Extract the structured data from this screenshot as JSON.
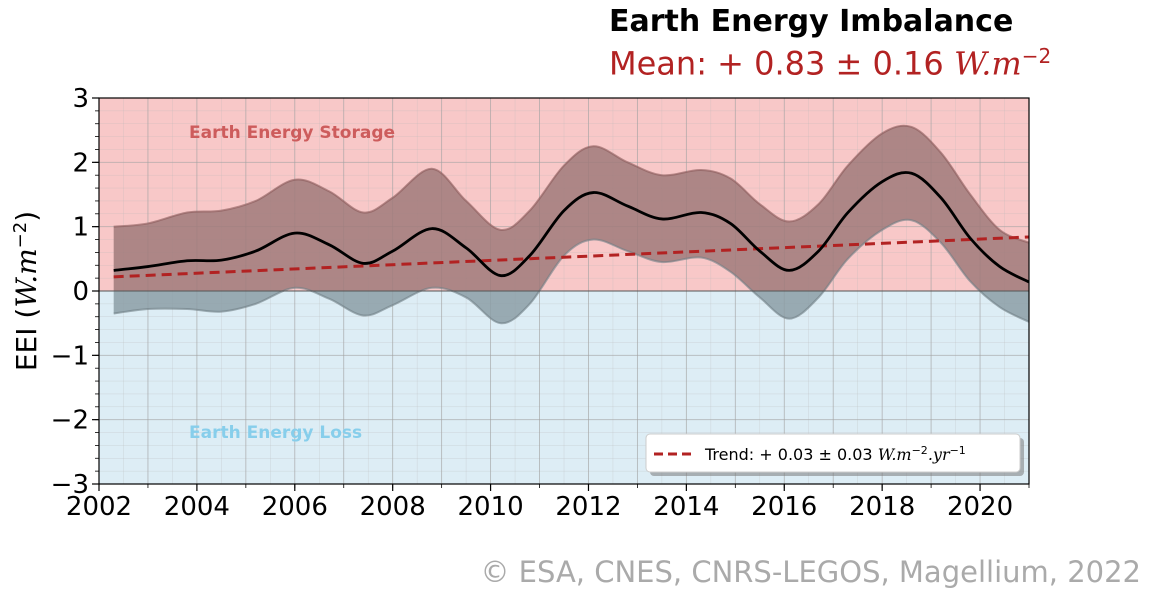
{
  "title": "Earth Energy Imbalance",
  "subtitle_prefix": "Mean: + 0.83 ± 0.16",
  "subtitle_unit": "W.m",
  "subtitle_exp": "−2",
  "credit": "© ESA, CNES, CNRS-LEGOS, Magellium, 2022",
  "colors": {
    "storage_bg": "#f8c8c8",
    "loss_bg": "#ddedf5",
    "band_pos": "#a07a7a",
    "band_neg": "#8c9ea6",
    "trend": "#b22222",
    "mean_line": "#000000",
    "storage_label": "#cd5c5c",
    "loss_label": "#87ceeb"
  },
  "chart_data": {
    "type": "line",
    "title": "Earth Energy Imbalance",
    "subtitle": "Mean: + 0.83 ± 0.16 W.m^-2",
    "ylabel": "EEI (W.m^-2)",
    "xlabel": "",
    "xlim": [
      2002,
      2021
    ],
    "ylim": [
      -3,
      3
    ],
    "x_ticks": [
      2002,
      2004,
      2006,
      2008,
      2010,
      2012,
      2014,
      2016,
      2018,
      2020
    ],
    "y_ticks": [
      -3,
      -2,
      -1,
      0,
      1,
      2,
      3
    ],
    "y_tick_labels": [
      "−3",
      "−2",
      "−1",
      "0",
      "1",
      "2",
      "3"
    ],
    "grid": true,
    "regions": [
      {
        "label": "Earth Energy Storage",
        "y_range": [
          0,
          3
        ]
      },
      {
        "label": "Earth Energy Loss",
        "y_range": [
          -3,
          0
        ]
      }
    ],
    "series": [
      {
        "kind": "mean",
        "x": [
          2002.3,
          2003.0,
          2003.8,
          2004.5,
          2005.2,
          2006.0,
          2006.7,
          2007.4,
          2008.0,
          2008.8,
          2009.5,
          2010.2,
          2010.8,
          2011.5,
          2012.1,
          2012.8,
          2013.5,
          2014.3,
          2014.9,
          2015.5,
          2016.1,
          2016.7,
          2017.3,
          2018.0,
          2018.6,
          2019.2,
          2019.8,
          2020.4,
          2021.0
        ],
        "y": [
          0.32,
          0.38,
          0.47,
          0.48,
          0.62,
          0.9,
          0.72,
          0.43,
          0.62,
          0.97,
          0.67,
          0.24,
          0.55,
          1.25,
          1.53,
          1.32,
          1.12,
          1.22,
          1.05,
          0.62,
          0.32,
          0.62,
          1.22,
          1.7,
          1.83,
          1.45,
          0.82,
          0.38,
          0.14
        ]
      },
      {
        "kind": "upper",
        "x": [
          2002.3,
          2003.0,
          2003.8,
          2004.5,
          2005.2,
          2006.0,
          2006.7,
          2007.4,
          2008.0,
          2008.8,
          2009.5,
          2010.2,
          2010.8,
          2011.5,
          2012.1,
          2012.8,
          2013.5,
          2014.3,
          2014.9,
          2015.5,
          2016.1,
          2016.7,
          2017.3,
          2018.0,
          2018.6,
          2019.2,
          2019.8,
          2020.4,
          2021.0
        ],
        "y": [
          1.0,
          1.05,
          1.22,
          1.25,
          1.4,
          1.73,
          1.55,
          1.22,
          1.45,
          1.9,
          1.4,
          0.95,
          1.25,
          1.95,
          2.25,
          2.0,
          1.8,
          1.88,
          1.75,
          1.35,
          1.08,
          1.35,
          1.95,
          2.45,
          2.55,
          2.15,
          1.5,
          0.95,
          0.75
        ]
      },
      {
        "kind": "lower",
        "x": [
          2002.3,
          2003.0,
          2003.8,
          2004.5,
          2005.2,
          2006.0,
          2006.7,
          2007.4,
          2008.0,
          2008.8,
          2009.5,
          2010.2,
          2010.8,
          2011.5,
          2012.1,
          2012.8,
          2013.5,
          2014.3,
          2014.9,
          2015.5,
          2016.1,
          2016.7,
          2017.3,
          2018.0,
          2018.6,
          2019.2,
          2019.8,
          2020.4,
          2021.0
        ],
        "y": [
          -0.35,
          -0.28,
          -0.28,
          -0.32,
          -0.2,
          0.05,
          -0.12,
          -0.38,
          -0.22,
          0.05,
          -0.1,
          -0.5,
          -0.2,
          0.55,
          0.8,
          0.62,
          0.45,
          0.52,
          0.3,
          -0.1,
          -0.43,
          -0.1,
          0.5,
          0.95,
          1.1,
          0.75,
          0.15,
          -0.25,
          -0.48
        ]
      },
      {
        "kind": "trend",
        "name": "Trend: + 0.03 ± 0.03 W.m^-2.yr^-1",
        "x": [
          2002.3,
          2021.0
        ],
        "y": [
          0.22,
          0.84
        ]
      }
    ],
    "legend": {
      "placement": "lower-right",
      "label_prefix": "Trend: + 0.03 ± 0.03",
      "label_unit": "W.m",
      "label_exp1": "−2",
      "label_mid": ".yr",
      "label_exp2": "−1"
    },
    "annotations": [
      "Earth Energy Storage",
      "Earth Energy Loss"
    ]
  }
}
